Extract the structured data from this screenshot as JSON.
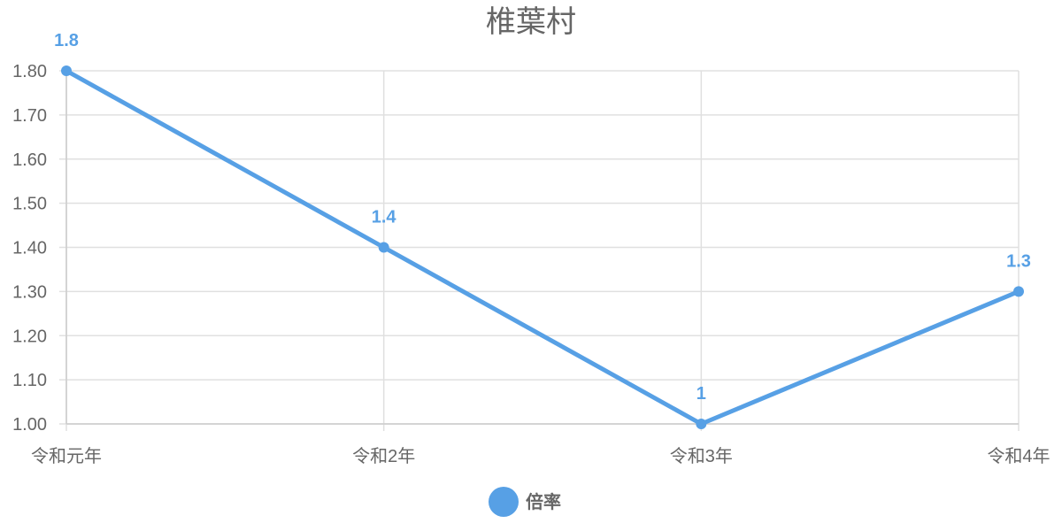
{
  "chart_data": {
    "type": "line",
    "title": "椎葉村",
    "categories": [
      "令和元年",
      "令和2年",
      "令和3年",
      "令和4年"
    ],
    "series": [
      {
        "name": "倍率",
        "values": [
          1.8,
          1.4,
          1,
          1.3
        ],
        "data_labels": [
          "1.8",
          "1.4",
          "1",
          "1.3"
        ],
        "color": "#57a0e5"
      }
    ],
    "ylim": [
      1.0,
      1.8
    ],
    "yticks": [
      "1.00",
      "1.10",
      "1.20",
      "1.30",
      "1.40",
      "1.50",
      "1.60",
      "1.70",
      "1.80"
    ],
    "xlabel": "",
    "ylabel": "",
    "grid": true,
    "legend": "bottom"
  }
}
